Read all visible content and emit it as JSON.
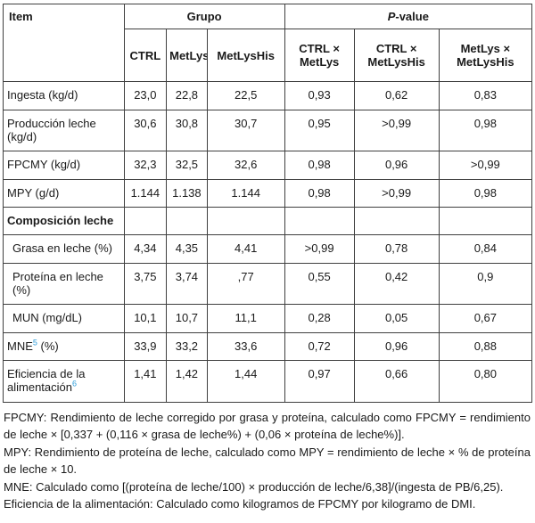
{
  "accent_colors": {
    "superscript_blue": "#2b9cd9",
    "border": "#3f3f3f",
    "text": "#1a1a1a"
  },
  "table": {
    "header": {
      "item": "Item",
      "group": "Grupo",
      "p_italic": "P",
      "p_rest": "-value",
      "sub_columns": [
        "CTRL",
        "MetLys",
        "MetLysHis",
        "CTRL × MetLys",
        "CTRL × MetLysHis",
        "MetLys × MetLysHis"
      ]
    },
    "rows": [
      {
        "label": "Ingesta (kg/d)",
        "values": [
          "23,0",
          "22,8",
          "22,5",
          "0,93",
          "0,62",
          "0,83"
        ]
      },
      {
        "label": "Producción leche (kg/d)",
        "values": [
          "30,6",
          "30,8",
          "30,7",
          "0,95",
          ">0,99",
          "0,98"
        ]
      },
      {
        "label": "FPCMY (kg/d)",
        "values": [
          "32,3",
          "32,5",
          "32,6",
          "0,98",
          "0,96",
          ">0,99"
        ]
      },
      {
        "label": "MPY (g/d)",
        "values": [
          "1.144",
          "1.138",
          "1.144",
          "0,98",
          ">0,99",
          "0,98"
        ]
      },
      {
        "label": "Composición leche",
        "section": true,
        "values": [
          "",
          "",
          "",
          "",
          "",
          ""
        ]
      },
      {
        "label": "Grasa en leche (%)",
        "indent": true,
        "values": [
          "4,34",
          "4,35",
          "4,41",
          ">0,99",
          "0,78",
          "0,84"
        ]
      },
      {
        "label": "Proteína en leche (%)",
        "indent": true,
        "values": [
          "3,75",
          "3,74",
          ",77",
          "0,55",
          "0,42",
          "0,9"
        ]
      },
      {
        "label": "MUN (mg/dL)",
        "indent": true,
        "values": [
          "10,1",
          "10,7",
          "11,1",
          "0,28",
          "0,05",
          "0,67"
        ]
      },
      {
        "label": "MNE",
        "sup": "5",
        "label_post": " (%)",
        "values": [
          "33,9",
          "33,2",
          "33,6",
          "0,72",
          "0,96",
          "0,88"
        ]
      },
      {
        "label": "Eficiencia de la alimentación",
        "sup": "6",
        "label_post": "",
        "values": [
          "1,41",
          "1,42",
          "1,44",
          "0,97",
          "0,66",
          "0,80"
        ]
      }
    ]
  },
  "footnotes": [
    "FPCMY: Rendimiento de leche corregido por grasa y proteína, calculado como FPCMY = rendimiento de leche × [0,337 + (0,116 × grasa de leche%) + (0,06 × proteína de leche%)].",
    "MPY: Rendimiento de proteína de leche, calculado como MPY = rendimiento de leche × % de proteína de leche × 10.",
    "MNE: Calculado como [(proteína de leche/100) × producción de leche/6,38]/(ingesta de PB/6,25).",
    "Eficiencia de la alimentación: Calculado como kilogramos de FPCMY por kilogramo de DMI."
  ]
}
